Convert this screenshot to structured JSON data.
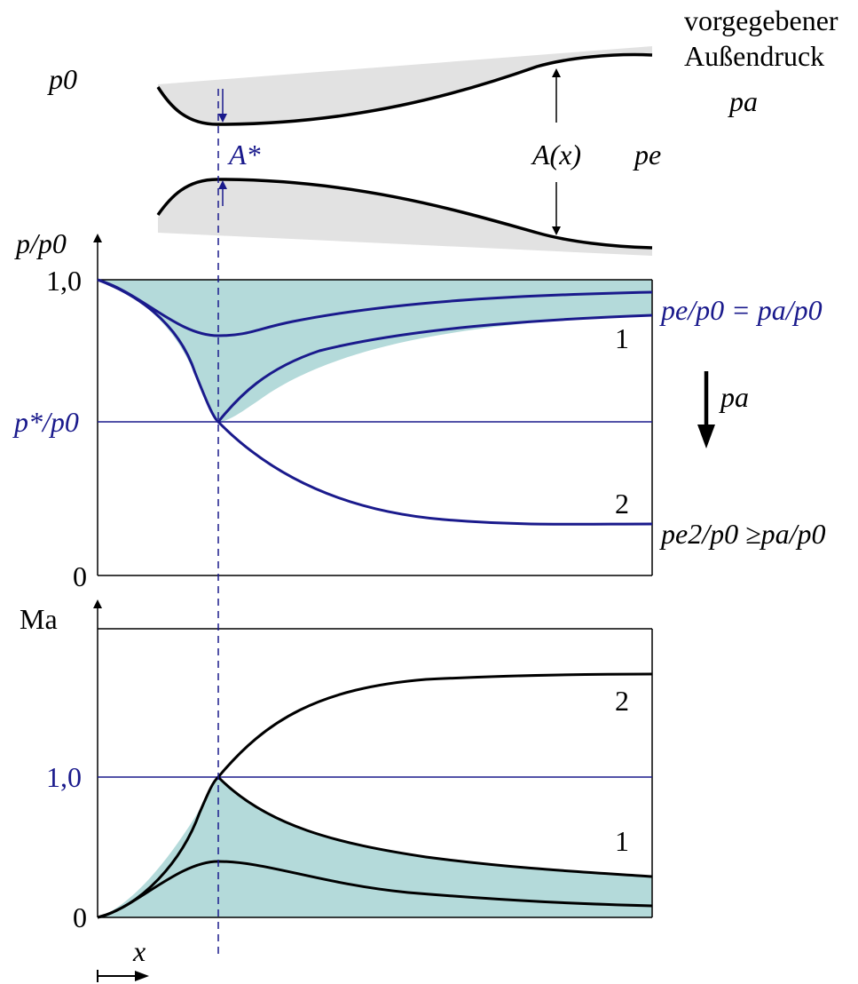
{
  "colors": {
    "accent_blue": "#1a1a8c",
    "fill_teal": "#b4dada",
    "nozzle_gray": "#e2e2e2",
    "ink": "#000000"
  },
  "nozzle": {
    "label_p0": "p0",
    "label_outside_line1": "vorgegebener",
    "label_outside_line2": "Außendruck",
    "label_pa": "pa",
    "label_throat": "A*",
    "label_area": "A(x)",
    "label_pe": "pe"
  },
  "pressure_plot": {
    "y_axis_label": "p/p0",
    "tick_top": "1,0",
    "tick_bottom": "0",
    "tick_critical": "p*/p0",
    "curve_label_1": "1",
    "curve_label_2": "2",
    "label_pe_eq_pa": "pe/p0 = pa/p0",
    "label_pe2_ge_pa": "pe2/p0 ≥pa/p0",
    "arrow_label": "pa"
  },
  "mach_plot": {
    "y_axis_label": "Ma",
    "tick_one": "1,0",
    "tick_zero": "0",
    "curve_label_1": "1",
    "curve_label_2": "2"
  },
  "x_axis": {
    "label": "x"
  },
  "chart_data": [
    {
      "type": "line",
      "ylabel": "p/p0",
      "xlabel": "x",
      "ylim": [
        0,
        1.0
      ],
      "reference_lines": [
        {
          "label": "p*/p0",
          "y": 0.53
        }
      ],
      "series": [
        {
          "name": "1",
          "x": [
            0,
            0.1,
            0.21,
            0.35,
            0.55,
            0.75,
            1.0
          ],
          "y": [
            1.0,
            0.87,
            0.53,
            0.78,
            0.84,
            0.87,
            0.89
          ]
        },
        {
          "name": "2",
          "x": [
            0,
            0.1,
            0.21,
            0.35,
            0.55,
            0.75,
            1.0
          ],
          "y": [
            1.0,
            0.87,
            0.53,
            0.3,
            0.2,
            0.18,
            0.18
          ]
        }
      ]
    },
    {
      "type": "line",
      "ylabel": "Ma",
      "xlabel": "x",
      "reference_lines": [
        {
          "label": "1,0",
          "y": 1.0
        }
      ],
      "series": [
        {
          "name": "1",
          "x": [
            0,
            0.1,
            0.21,
            0.35,
            0.55,
            0.75,
            1.0
          ],
          "y": [
            0,
            0.45,
            1.0,
            0.5,
            0.35,
            0.29,
            0.25
          ]
        },
        {
          "name": "2",
          "x": [
            0,
            0.1,
            0.21,
            0.35,
            0.55,
            0.75,
            1.0
          ],
          "y": [
            0,
            0.45,
            1.0,
            1.42,
            1.59,
            1.64,
            1.66
          ]
        }
      ]
    }
  ]
}
